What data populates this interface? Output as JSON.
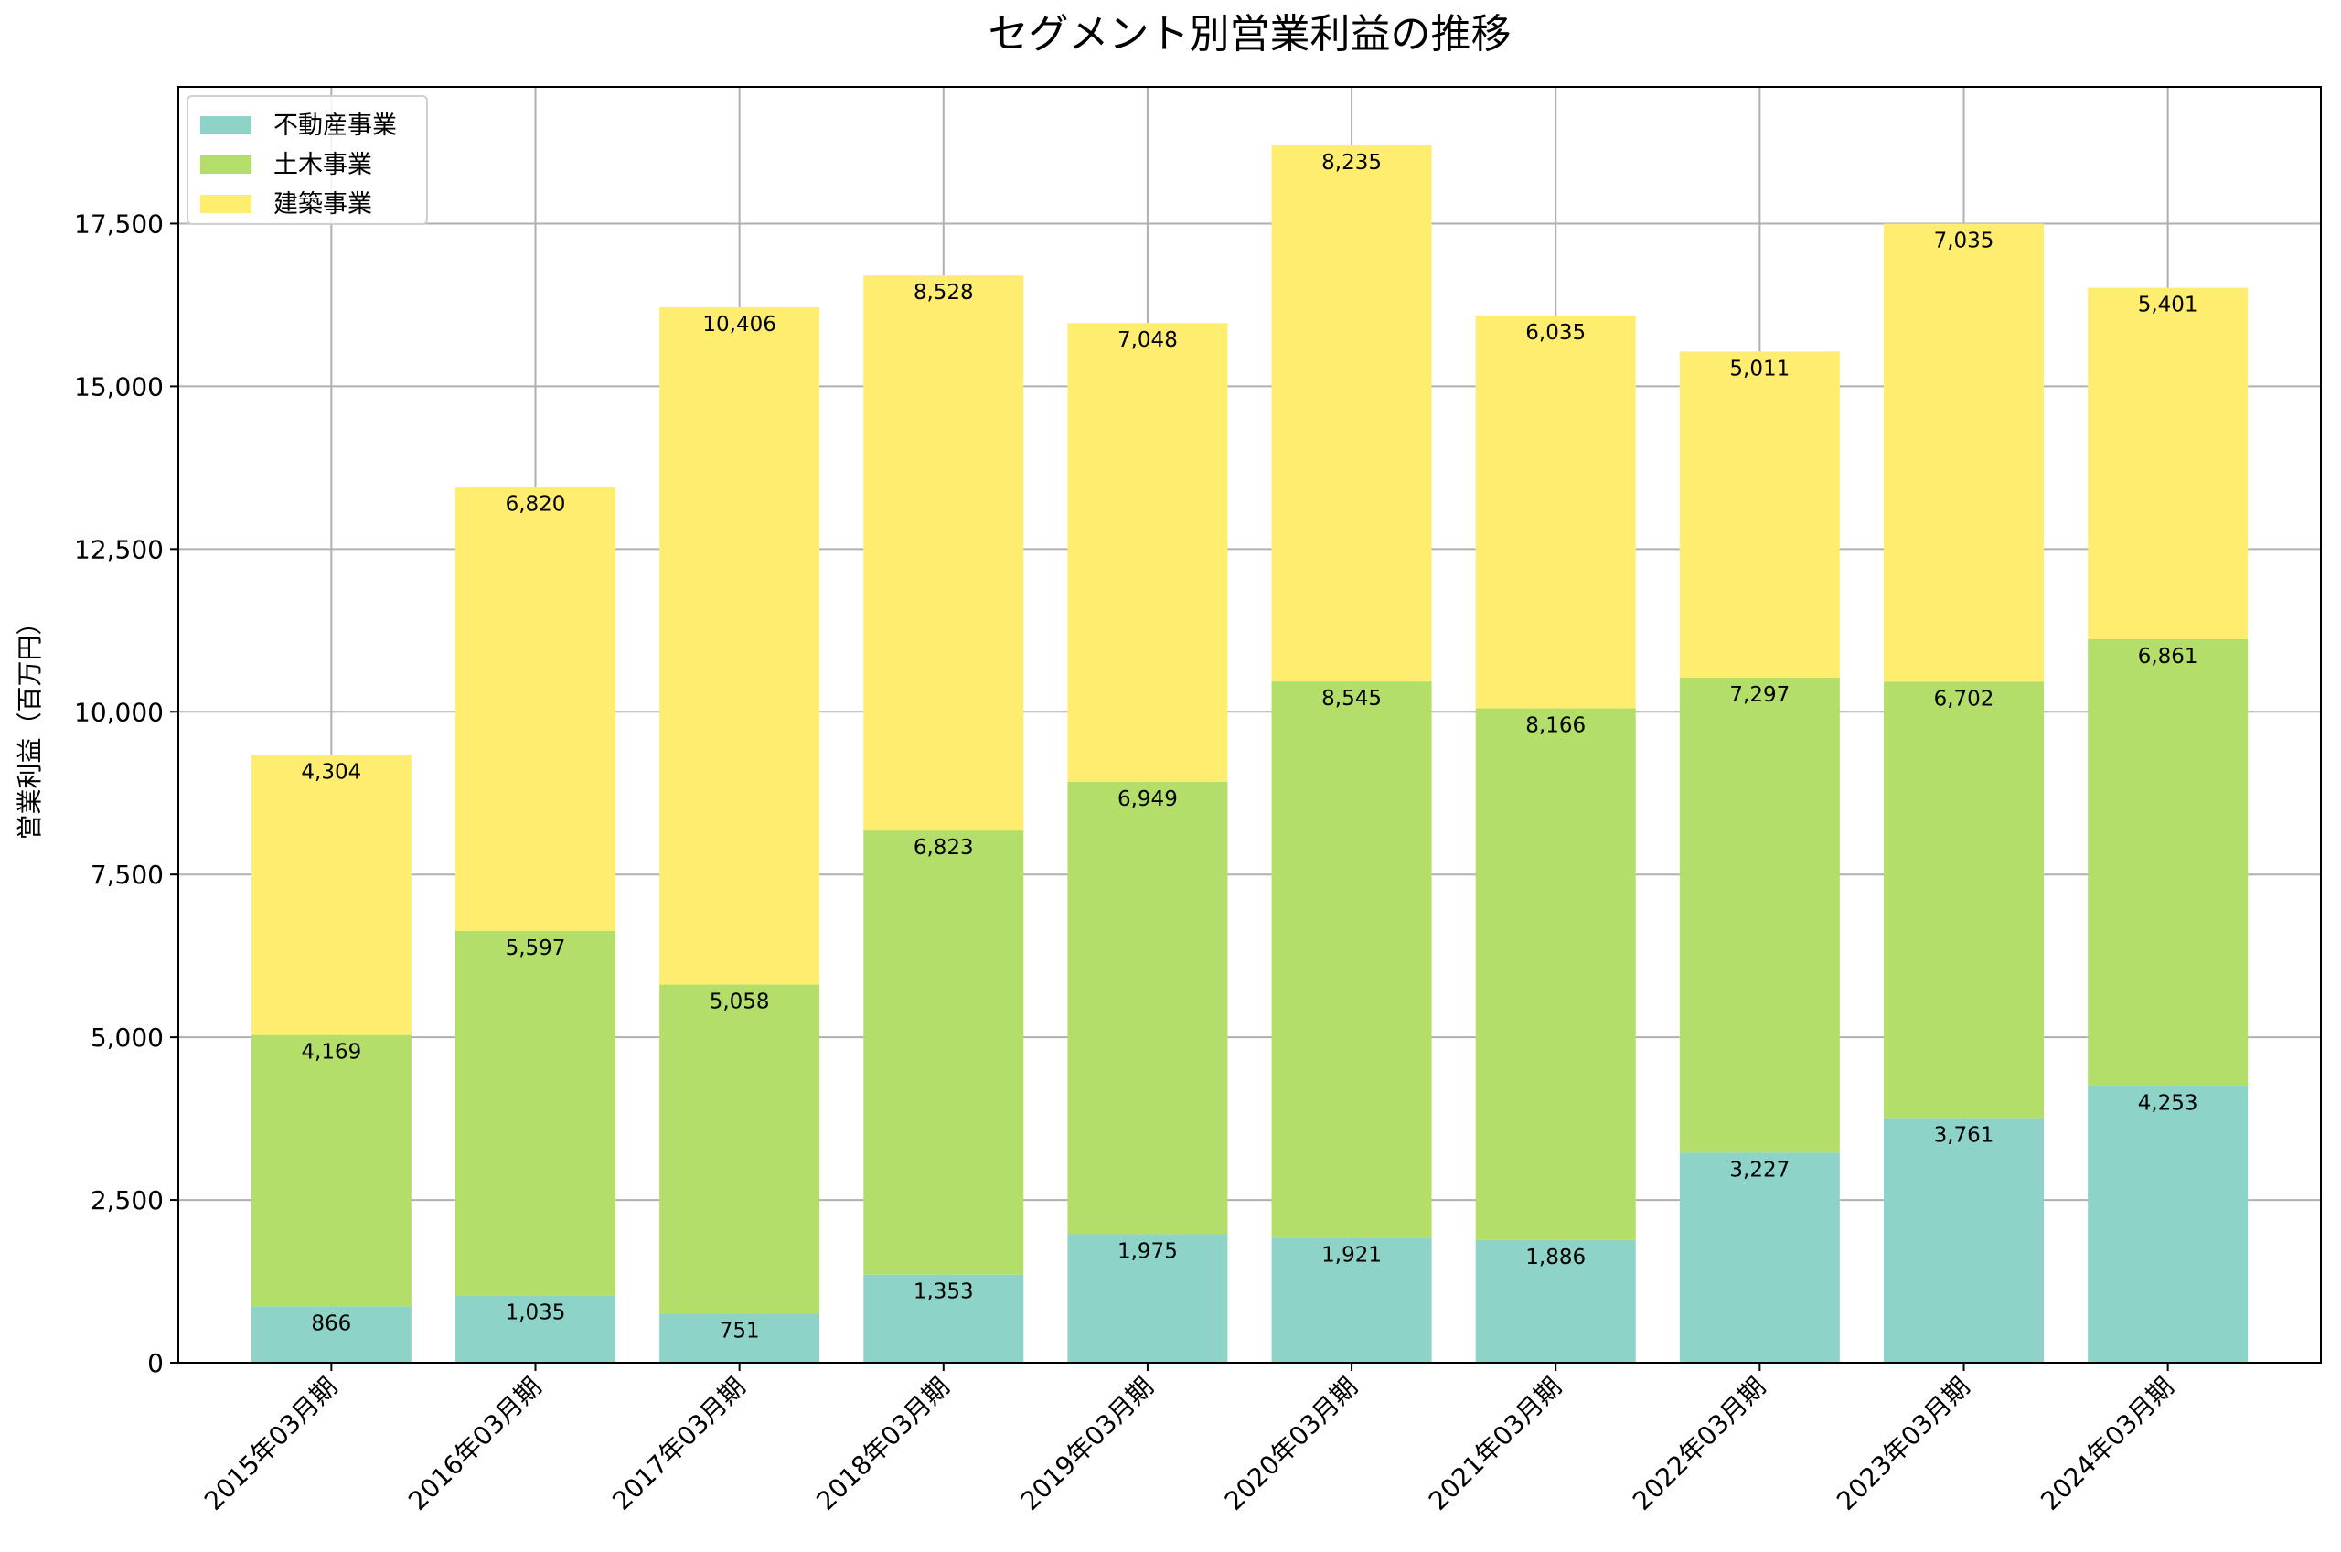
{
  "chart_data": {
    "type": "bar",
    "stacked": true,
    "title": "セグメント別営業利益の推移",
    "xlabel": "",
    "ylabel": "営業利益（百万円）",
    "categories": [
      "2015年03月期",
      "2016年03月期",
      "2017年03月期",
      "2018年03月期",
      "2019年03月期",
      "2020年03月期",
      "2021年03月期",
      "2022年03月期",
      "2023年03月期",
      "2024年03月期"
    ],
    "series": [
      {
        "name": "不動産事業",
        "color": "#8dd3c7",
        "values": [
          866,
          1035,
          751,
          1353,
          1975,
          1921,
          1886,
          3227,
          3761,
          4253
        ],
        "labels": [
          "866",
          "1,035",
          "751",
          "1,353",
          "1,975",
          "1,921",
          "1,886",
          "3,227",
          "3,761",
          "4,253"
        ]
      },
      {
        "name": "土木事業",
        "color": "#b3de69",
        "values": [
          4169,
          5597,
          5058,
          6823,
          6949,
          8545,
          8166,
          7297,
          6702,
          6861
        ],
        "labels": [
          "4,169",
          "5,597",
          "5,058",
          "6,823",
          "6,949",
          "8,545",
          "8,166",
          "7,297",
          "6,702",
          "6,861"
        ]
      },
      {
        "name": "建築事業",
        "color": "#ffed6f",
        "values": [
          4304,
          6820,
          10406,
          8528,
          7048,
          8235,
          6035,
          5011,
          7035,
          5401
        ],
        "labels": [
          "4,304",
          "6,820",
          "10,406",
          "8,528",
          "7,048",
          "8,235",
          "6,035",
          "5,011",
          "7,035",
          "5,401"
        ]
      }
    ],
    "ylim": [
      0,
      19600
    ],
    "yticks": [
      0,
      2500,
      5000,
      7500,
      10000,
      12500,
      15000,
      17500
    ],
    "ytick_labels": [
      "0",
      "2,500",
      "5,000",
      "7,500",
      "10,000",
      "12,500",
      "15,000",
      "17,500"
    ],
    "grid": true,
    "legend_position": "top-left"
  }
}
